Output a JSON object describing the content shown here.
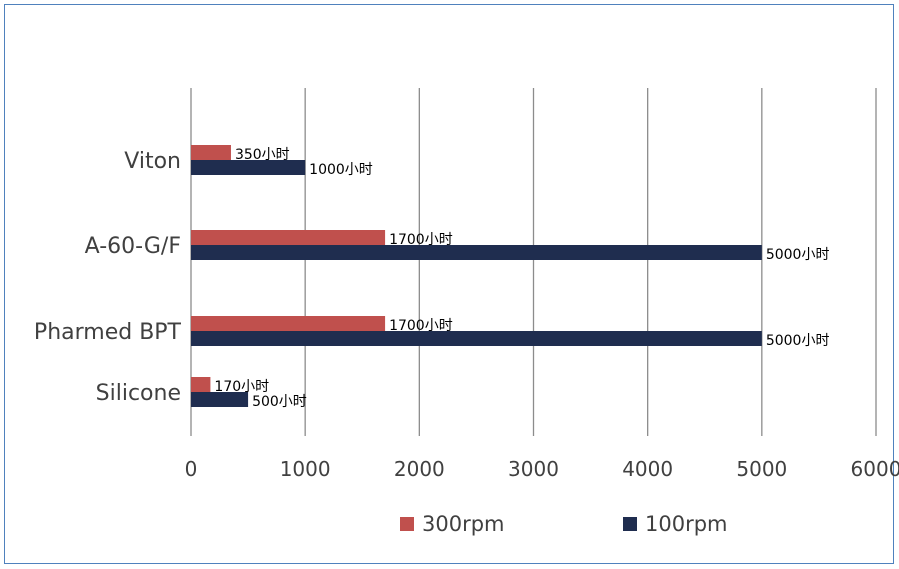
{
  "chart_data": {
    "type": "bar",
    "orientation": "horizontal",
    "categories": [
      "Silicone",
      "Pharmed BPT",
      "A-60-G/F",
      "Viton"
    ],
    "series": [
      {
        "name": "300rpm",
        "color": "#c0504d",
        "values": [
          170,
          1700,
          1700,
          350
        ],
        "data_labels": [
          "170小时",
          "1700小时",
          "1700小时",
          "350小时"
        ]
      },
      {
        "name": "100rpm",
        "color": "#1f2d4f",
        "values": [
          500,
          5000,
          5000,
          1000
        ],
        "data_labels": [
          "500小时",
          "5000小时",
          "5000小时",
          "1000小时"
        ]
      }
    ],
    "xlim": [
      0,
      6000
    ],
    "x_ticks": [
      0,
      1000,
      2000,
      3000,
      4000,
      5000,
      6000
    ],
    "grid": "vertical",
    "legend_placement": "bottom",
    "title": "",
    "xlabel": "",
    "ylabel": ""
  }
}
